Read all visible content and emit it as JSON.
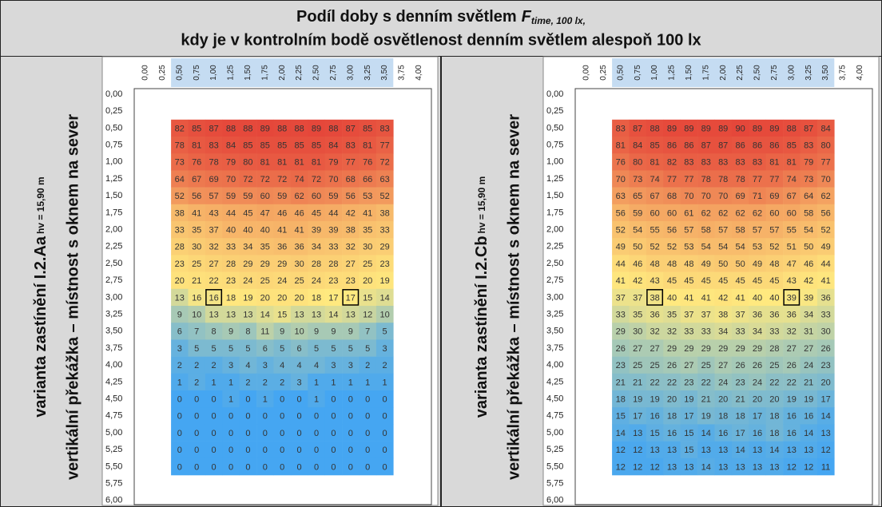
{
  "title": {
    "line1": "Podíl doby s denním světlem",
    "symbol": "F",
    "subscript": "time, 100 lx,",
    "line2": "kdy je v kontrolním bodě osvětlenost denním světlem alespoň 100 lx"
  },
  "column_labels": [
    "0,00",
    "0,25",
    "0,50",
    "0,75",
    "1,00",
    "1,25",
    "1,50",
    "1,75",
    "2,00",
    "2,25",
    "2,50",
    "2,75",
    "3,00",
    "3,25",
    "3,50",
    "3,75",
    "4,00"
  ],
  "row_labels": [
    "0,00",
    "0,25",
    "0,50",
    "0,75",
    "1,00",
    "1,25",
    "1,50",
    "1,75",
    "2,00",
    "2,25",
    "2,50",
    "2,75",
    "3,00",
    "3,25",
    "3,50",
    "3,75",
    "4,00",
    "4,25",
    "4,50",
    "4,75",
    "5,00",
    "5,25",
    "5,50",
    "5,75",
    "6,00"
  ],
  "data_start": {
    "row": "0,50",
    "column": "0,50"
  },
  "panels": [
    {
      "label_main": "varianta zastínění I.2.Aa",
      "label_sub": "hv = 15,90 m",
      "label_line2": "vertikální překážka – místnost s oknem na sever",
      "marked": [
        {
          "row": "3,00",
          "column": "1,00"
        },
        {
          "row": "3,00",
          "column": "3,00"
        }
      ],
      "values": [
        [
          82,
          85,
          87,
          88,
          88,
          89,
          88,
          88,
          89,
          88,
          87,
          85,
          83
        ],
        [
          78,
          81,
          83,
          84,
          85,
          85,
          85,
          85,
          85,
          84,
          83,
          81,
          77
        ],
        [
          73,
          76,
          78,
          79,
          80,
          81,
          81,
          81,
          81,
          79,
          77,
          76,
          72
        ],
        [
          64,
          67,
          69,
          70,
          72,
          72,
          72,
          74,
          72,
          70,
          68,
          66,
          63
        ],
        [
          52,
          56,
          57,
          59,
          59,
          60,
          59,
          62,
          60,
          59,
          56,
          53,
          52
        ],
        [
          38,
          41,
          43,
          44,
          45,
          47,
          46,
          46,
          45,
          44,
          42,
          41,
          38
        ],
        [
          33,
          35,
          37,
          40,
          40,
          40,
          41,
          41,
          39,
          39,
          38,
          35,
          33
        ],
        [
          28,
          30,
          32,
          33,
          34,
          35,
          36,
          36,
          34,
          33,
          32,
          30,
          29
        ],
        [
          23,
          25,
          27,
          28,
          29,
          29,
          29,
          30,
          28,
          28,
          27,
          25,
          23
        ],
        [
          20,
          21,
          22,
          23,
          24,
          25,
          24,
          25,
          24,
          23,
          23,
          20,
          19
        ],
        [
          13,
          16,
          16,
          18,
          19,
          20,
          20,
          20,
          18,
          17,
          17,
          15,
          14
        ],
        [
          9,
          10,
          13,
          13,
          13,
          14,
          15,
          13,
          13,
          14,
          13,
          12,
          10
        ],
        [
          6,
          7,
          8,
          9,
          8,
          11,
          9,
          10,
          9,
          9,
          9,
          7,
          5
        ],
        [
          3,
          5,
          5,
          5,
          5,
          6,
          5,
          6,
          5,
          5,
          5,
          5,
          3
        ],
        [
          2,
          2,
          2,
          3,
          4,
          3,
          4,
          4,
          4,
          3,
          3,
          2,
          2
        ],
        [
          1,
          2,
          1,
          1,
          2,
          2,
          2,
          3,
          1,
          1,
          1,
          1,
          1
        ],
        [
          0,
          0,
          0,
          1,
          0,
          1,
          0,
          0,
          1,
          0,
          0,
          0,
          0
        ],
        [
          0,
          0,
          0,
          0,
          0,
          0,
          0,
          0,
          0,
          0,
          0,
          0,
          0
        ],
        [
          0,
          0,
          0,
          0,
          0,
          0,
          0,
          0,
          0,
          0,
          0,
          0,
          0
        ],
        [
          0,
          0,
          0,
          0,
          0,
          0,
          0,
          0,
          0,
          0,
          0,
          0,
          0
        ],
        [
          0,
          0,
          0,
          0,
          0,
          0,
          0,
          0,
          0,
          0,
          0,
          0,
          0
        ]
      ]
    },
    {
      "label_main": "varianta zastínění I.2.Cb",
      "label_sub": "hv = 15,90 m",
      "label_line2": "vertikální překážka – místnost s oknem na sever",
      "marked": [
        {
          "row": "3,00",
          "column": "1,00"
        },
        {
          "row": "3,00",
          "column": "3,00"
        }
      ],
      "values": [
        [
          83,
          87,
          88,
          89,
          89,
          89,
          89,
          90,
          89,
          89,
          88,
          87,
          84
        ],
        [
          81,
          84,
          85,
          86,
          86,
          87,
          87,
          86,
          86,
          86,
          85,
          83,
          80
        ],
        [
          76,
          80,
          81,
          82,
          83,
          83,
          83,
          83,
          83,
          81,
          81,
          79,
          77
        ],
        [
          70,
          73,
          74,
          77,
          77,
          78,
          78,
          78,
          77,
          77,
          74,
          73,
          70
        ],
        [
          63,
          65,
          67,
          68,
          70,
          70,
          70,
          69,
          71,
          69,
          67,
          64,
          62
        ],
        [
          56,
          59,
          60,
          60,
          61,
          62,
          62,
          62,
          62,
          60,
          60,
          58,
          56
        ],
        [
          52,
          54,
          55,
          56,
          57,
          58,
          57,
          58,
          57,
          57,
          55,
          54,
          52
        ],
        [
          49,
          50,
          52,
          52,
          53,
          54,
          54,
          54,
          53,
          52,
          51,
          50,
          49
        ],
        [
          44,
          46,
          48,
          48,
          48,
          49,
          50,
          50,
          49,
          48,
          47,
          46,
          44
        ],
        [
          41,
          42,
          43,
          45,
          45,
          45,
          45,
          45,
          45,
          45,
          43,
          42,
          41
        ],
        [
          37,
          37,
          38,
          40,
          41,
          41,
          42,
          41,
          40,
          40,
          39,
          39,
          36
        ],
        [
          33,
          35,
          36,
          35,
          37,
          37,
          38,
          37,
          36,
          36,
          36,
          34,
          33
        ],
        [
          29,
          30,
          32,
          32,
          33,
          33,
          34,
          33,
          34,
          33,
          32,
          31,
          30
        ],
        [
          26,
          27,
          27,
          29,
          29,
          29,
          29,
          29,
          29,
          28,
          27,
          27,
          26
        ],
        [
          23,
          25,
          25,
          26,
          27,
          25,
          27,
          26,
          26,
          25,
          26,
          24,
          23
        ],
        [
          21,
          21,
          22,
          22,
          23,
          22,
          24,
          23,
          24,
          22,
          22,
          21,
          20
        ],
        [
          18,
          19,
          19,
          20,
          19,
          21,
          20,
          21,
          20,
          20,
          19,
          19,
          17
        ],
        [
          15,
          17,
          16,
          18,
          17,
          19,
          18,
          18,
          17,
          18,
          16,
          16,
          14
        ],
        [
          14,
          13,
          15,
          16,
          15,
          14,
          16,
          17,
          16,
          18,
          16,
          14,
          13
        ],
        [
          12,
          12,
          13,
          13,
          15,
          13,
          13,
          14,
          13,
          14,
          13,
          13,
          12
        ],
        [
          12,
          12,
          12,
          13,
          13,
          14,
          13,
          13,
          13,
          13,
          12,
          12,
          11
        ]
      ]
    }
  ]
}
